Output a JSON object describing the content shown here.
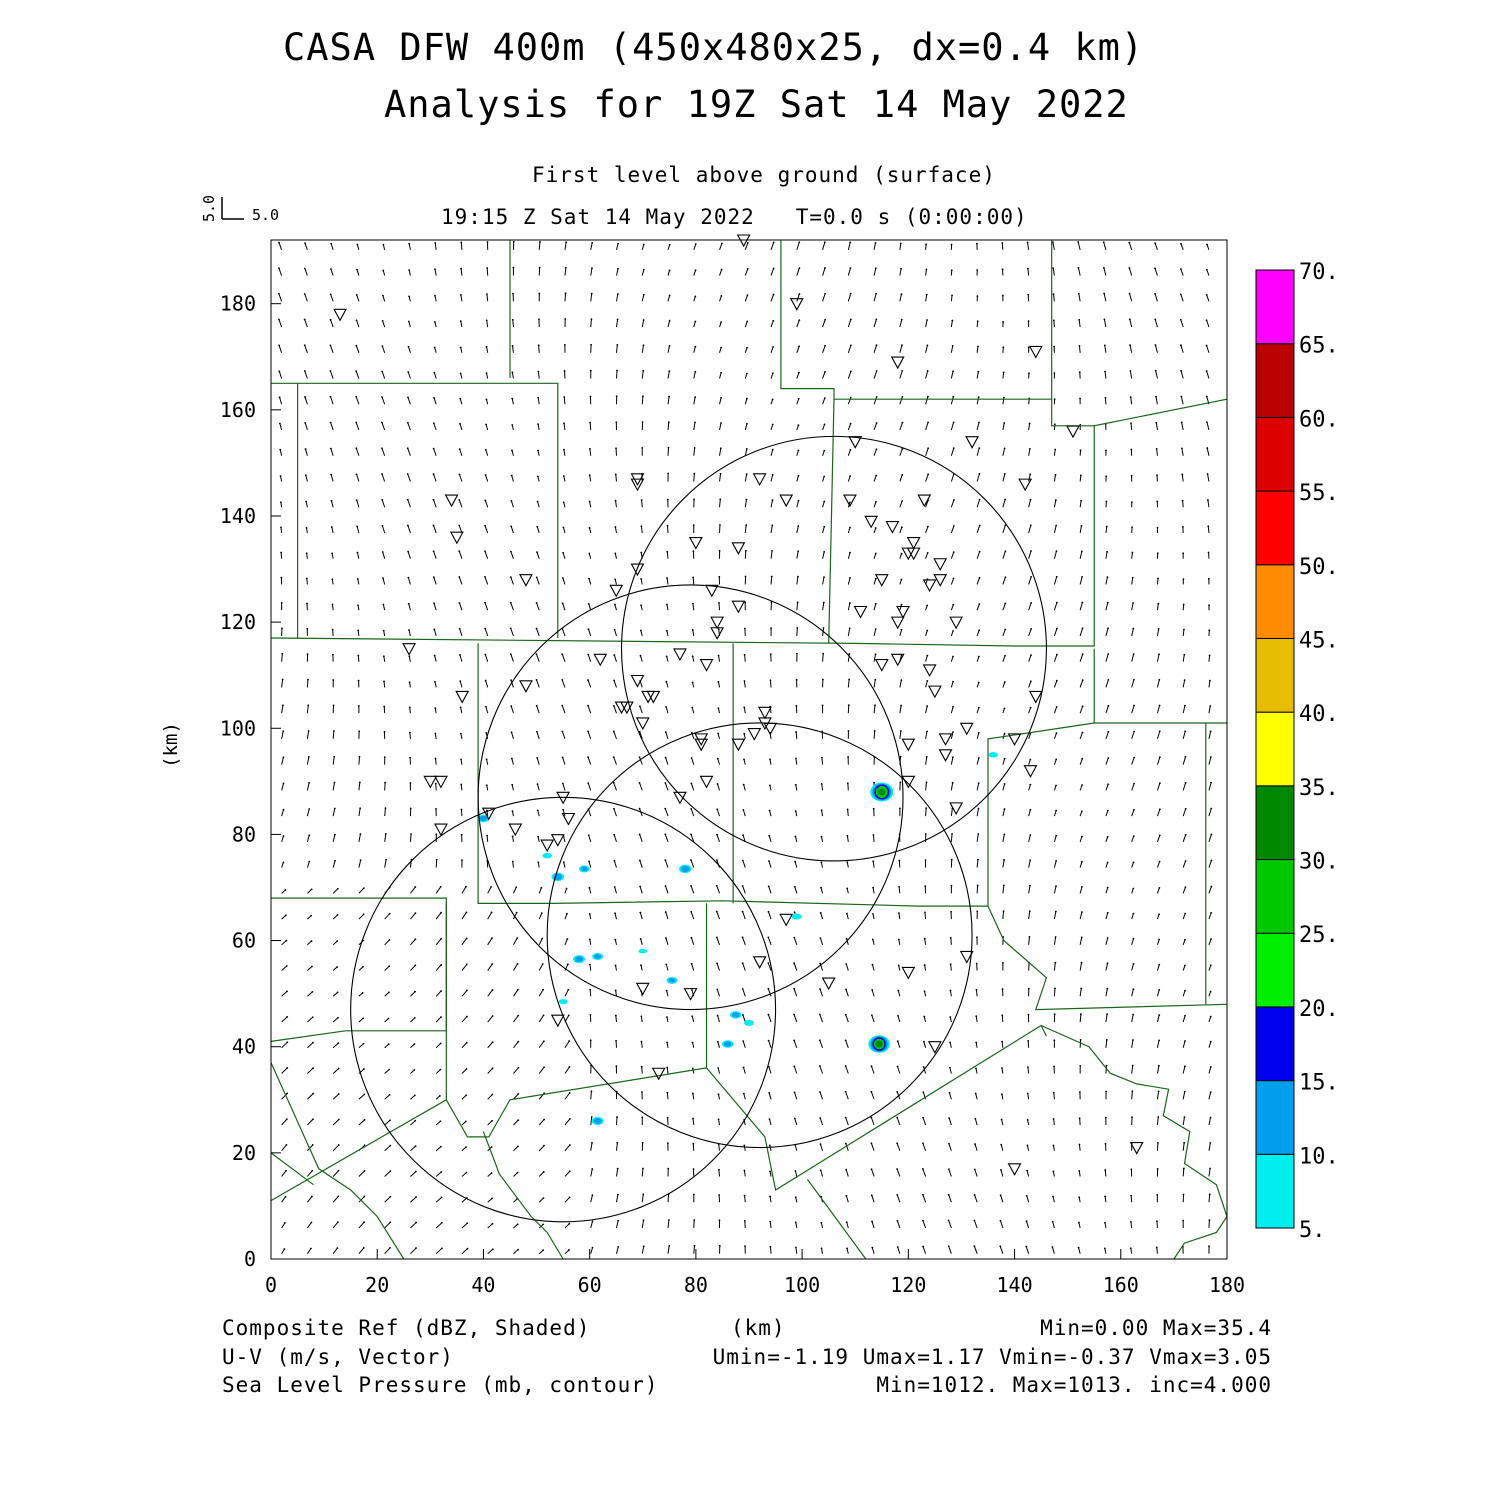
{
  "header": {
    "title_line1": "CASA DFW 400m (450x480x25, dx=0.4 km)",
    "title_line2": "Analysis for 19Z Sat 14 May 2022",
    "level": "First level above ground (surface)",
    "time": "19:15 Z Sat 14 May 2022   T=0.0 s (0:00:00)",
    "ref_vector_u": "5.0",
    "ref_vector_v": "5.0"
  },
  "axes": {
    "xlabel": "(km)",
    "ylabel": "(km)",
    "x_ticks": [
      "0",
      "20",
      "40",
      "60",
      "80",
      "100",
      "120",
      "140",
      "160",
      "180"
    ],
    "y_ticks": [
      "0",
      "20",
      "40",
      "60",
      "80",
      "100",
      "120",
      "140",
      "160",
      "180"
    ]
  },
  "colorbar": {
    "labels": [
      "5.",
      "10.",
      "15.",
      "20.",
      "25.",
      "30.",
      "35.",
      "40.",
      "45.",
      "50.",
      "55.",
      "60.",
      "65.",
      "70."
    ],
    "colors": [
      "#00eeee",
      "#009fee",
      "#0000ee",
      "#00ee00",
      "#00c800",
      "#008800",
      "#ffff00",
      "#e6bd00",
      "#ff8c00",
      "#ff0000",
      "#dd0000",
      "#bb0000",
      "#ff00ff"
    ]
  },
  "footer": {
    "field1": "Composite Ref (dBZ, Shaded)",
    "field2": "U-V (m/s, Vector)",
    "field3": "Sea Level Pressure (mb, contour)",
    "units": "(km)",
    "stats1": "Min=0.00 Max=35.4",
    "stats2": "Umin=-1.19 Umax=1.17 Vmin=-0.37 Vmax=3.05",
    "stats3": "Min=1012. Max=1013. inc=4.000"
  },
  "map_data": {
    "domain_km": [
      0,
      180,
      0,
      192
    ],
    "county_color": "#1a661a",
    "radar_range_rings_km": [
      {
        "center": [
          106,
          115
        ],
        "radius": 40
      },
      {
        "center": [
          79,
          87
        ],
        "radius": 40
      },
      {
        "center": [
          92,
          61
        ],
        "radius": 40
      },
      {
        "center": [
          55,
          47
        ],
        "radius": 40
      }
    ],
    "stations_km": [
      [
        13,
        178
      ],
      [
        89,
        192
      ],
      [
        99,
        180
      ],
      [
        118,
        169
      ],
      [
        144,
        171
      ],
      [
        151,
        156
      ],
      [
        132,
        154
      ],
      [
        110,
        154
      ],
      [
        34,
        143
      ],
      [
        35,
        136
      ],
      [
        69,
        147
      ],
      [
        69,
        146
      ],
      [
        92,
        147
      ],
      [
        97,
        143
      ],
      [
        109,
        143
      ],
      [
        113,
        139
      ],
      [
        117,
        138
      ],
      [
        123,
        143
      ],
      [
        121,
        135
      ],
      [
        120,
        133
      ],
      [
        121,
        133
      ],
      [
        126,
        131
      ],
      [
        126,
        128
      ],
      [
        124,
        127
      ],
      [
        111,
        122
      ],
      [
        115,
        128
      ],
      [
        119,
        122
      ],
      [
        118,
        120
      ],
      [
        129,
        120
      ],
      [
        142,
        146
      ],
      [
        48,
        128
      ],
      [
        69,
        130
      ],
      [
        65,
        126
      ],
      [
        80,
        135
      ],
      [
        88,
        134
      ],
      [
        83,
        126
      ],
      [
        88,
        123
      ],
      [
        84,
        120
      ],
      [
        84,
        118
      ],
      [
        26,
        115
      ],
      [
        36,
        106
      ],
      [
        48,
        108
      ],
      [
        62,
        113
      ],
      [
        69,
        109
      ],
      [
        66,
        104
      ],
      [
        67,
        104
      ],
      [
        70,
        101
      ],
      [
        71,
        106
      ],
      [
        72,
        106
      ],
      [
        77,
        114
      ],
      [
        82,
        112
      ],
      [
        115,
        112
      ],
      [
        118,
        113
      ],
      [
        124,
        111
      ],
      [
        125,
        107
      ],
      [
        93,
        103
      ],
      [
        94,
        100
      ],
      [
        93,
        101
      ],
      [
        91,
        99
      ],
      [
        88,
        97
      ],
      [
        81,
        98
      ],
      [
        81,
        97
      ],
      [
        82,
        90
      ],
      [
        77,
        87
      ],
      [
        120,
        97
      ],
      [
        120,
        90
      ],
      [
        127,
        98
      ],
      [
        127,
        95
      ],
      [
        131,
        100
      ],
      [
        129,
        85
      ],
      [
        140,
        98
      ],
      [
        144,
        106
      ],
      [
        143,
        92
      ],
      [
        30,
        90
      ],
      [
        32,
        90
      ],
      [
        32,
        81
      ],
      [
        41,
        84
      ],
      [
        46,
        81
      ],
      [
        55,
        87
      ],
      [
        56,
        83
      ],
      [
        52,
        78
      ],
      [
        54,
        79
      ],
      [
        97,
        64
      ],
      [
        92,
        56
      ],
      [
        131,
        57
      ],
      [
        120,
        54
      ],
      [
        105,
        52
      ],
      [
        70,
        51
      ],
      [
        79,
        50
      ],
      [
        54,
        45
      ],
      [
        73,
        35
      ],
      [
        125,
        40
      ],
      [
        140,
        17
      ],
      [
        163,
        21
      ]
    ],
    "echoes_km": [
      {
        "x": 115,
        "y": 88,
        "dbz": 35
      },
      {
        "x": 114.5,
        "y": 40.5,
        "dbz": 32
      },
      {
        "x": 40,
        "y": 83,
        "dbz": 12
      },
      {
        "x": 54,
        "y": 72,
        "dbz": 14
      },
      {
        "x": 59,
        "y": 73.5,
        "dbz": 11
      },
      {
        "x": 78,
        "y": 73.5,
        "dbz": 14
      },
      {
        "x": 58,
        "y": 56.5,
        "dbz": 13
      },
      {
        "x": 61.5,
        "y": 57,
        "dbz": 11
      },
      {
        "x": 75.5,
        "y": 52.5,
        "dbz": 11
      },
      {
        "x": 87.5,
        "y": 46,
        "dbz": 12
      },
      {
        "x": 90,
        "y": 44.5,
        "dbz": 9
      },
      {
        "x": 86,
        "y": 40.5,
        "dbz": 12
      },
      {
        "x": 61.5,
        "y": 26,
        "dbz": 13
      },
      {
        "x": 99,
        "y": 64.5,
        "dbz": 9
      },
      {
        "x": 52,
        "y": 76,
        "dbz": 8
      },
      {
        "x": 55,
        "y": 48.5,
        "dbz": 7
      },
      {
        "x": 136,
        "y": 95,
        "dbz": 8
      },
      {
        "x": 70,
        "y": 58,
        "dbz": 6
      }
    ]
  }
}
